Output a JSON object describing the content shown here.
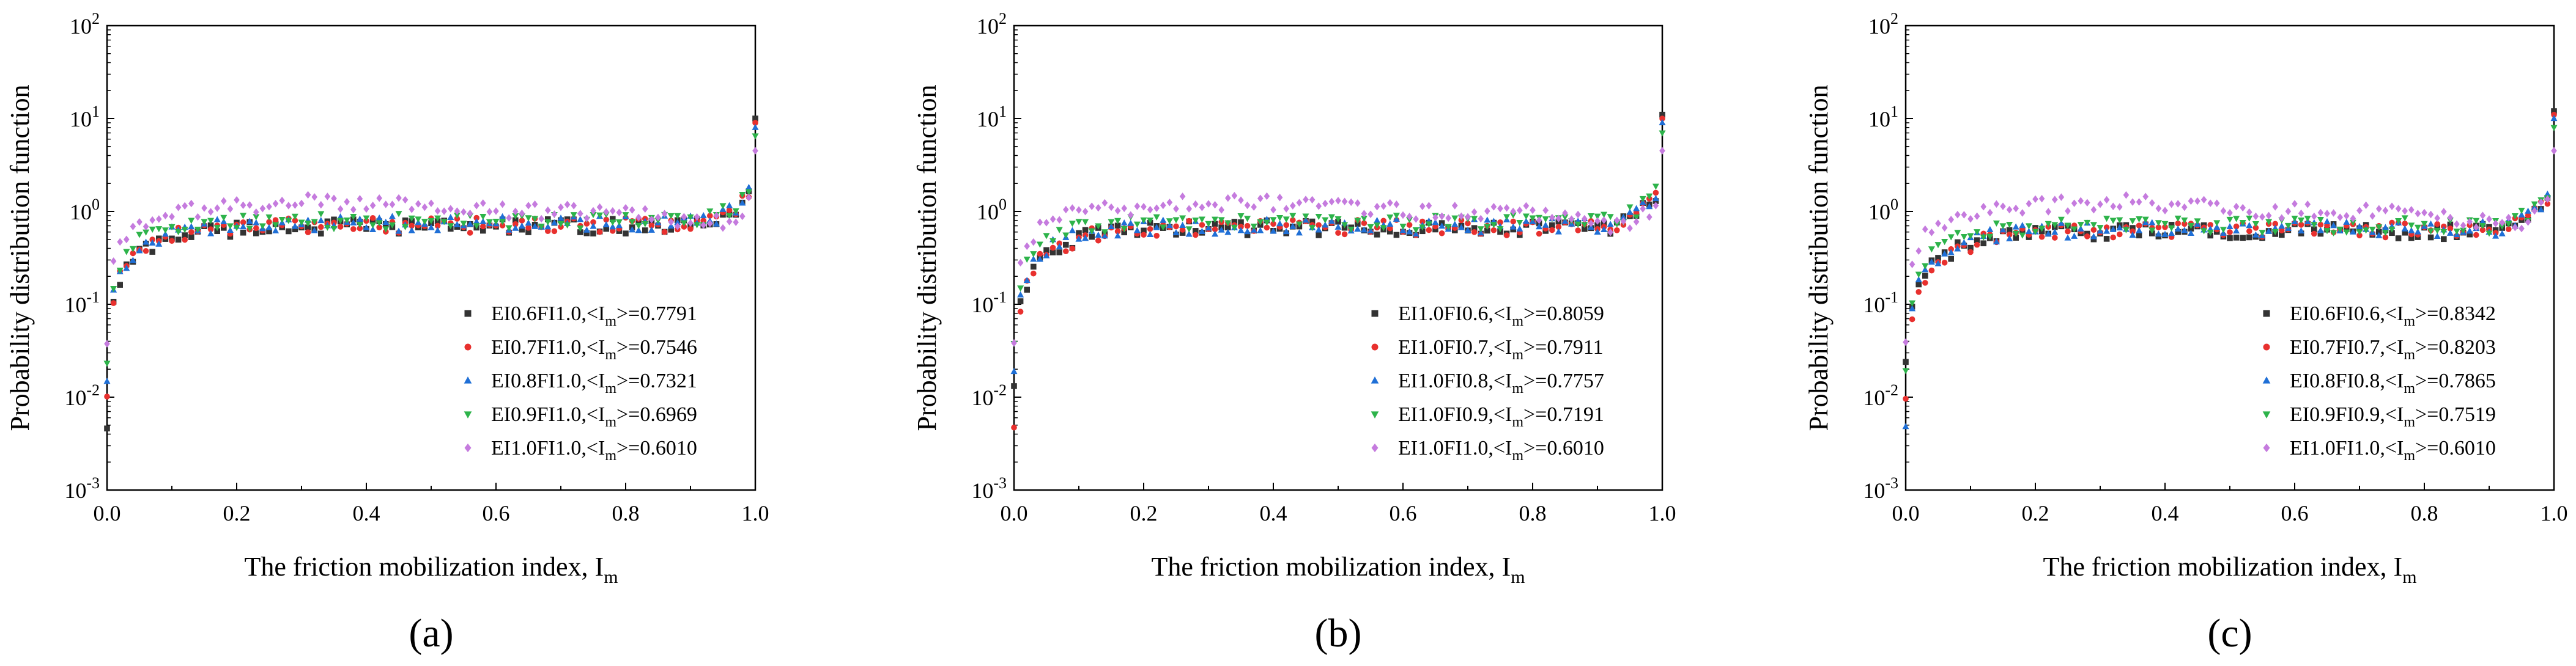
{
  "figure": {
    "panel_count": 3
  },
  "chart_data": [
    {
      "type": "scatter",
      "panel_label": "(a)",
      "xlabel": "The friction mobilization index, I",
      "xlabel_sub": "m",
      "ylabel": "Probability distribution function",
      "xlim": [
        0.0,
        1.0
      ],
      "ylim": [
        0.001,
        100
      ],
      "yscale": "log",
      "x_ticks": [
        "0.0",
        "0.2",
        "0.4",
        "0.6",
        "0.8",
        "1.0"
      ],
      "y_ticks": [
        {
          "base": "10",
          "exp": "-3"
        },
        {
          "base": "10",
          "exp": "-2"
        },
        {
          "base": "10",
          "exp": "-1"
        },
        {
          "base": "10",
          "exp": "0"
        },
        {
          "base": "10",
          "exp": "1"
        },
        {
          "base": "10",
          "exp": "2"
        }
      ],
      "legend_position": "bottom-right",
      "series": [
        {
          "name": "EI0.6FI1.0",
          "mean": "0.7791",
          "color": "#333333",
          "marker": "square",
          "start": 0.005,
          "plateau": 0.7,
          "rise_rate": 14,
          "dip": 0.0,
          "end_value": 10.0
        },
        {
          "name": "EI0.7FI1.0",
          "mean": "0.7546",
          "color": "#e8302e",
          "marker": "circle",
          "start": 0.011,
          "plateau": 0.72,
          "rise_rate": 15,
          "dip": 0.0,
          "end_value": 9.0
        },
        {
          "name": "EI0.8FI1.0",
          "mean": "0.7321",
          "color": "#1f6fd6",
          "marker": "triangle-up",
          "start": 0.016,
          "plateau": 0.75,
          "rise_rate": 16,
          "dip": 0.0,
          "end_value": 8.0
        },
        {
          "name": "EI0.9FI1.0",
          "mean": "0.6969",
          "color": "#2db34a",
          "marker": "triangle-down",
          "start": 0.025,
          "plateau": 0.8,
          "rise_rate": 18,
          "dip": 0.0,
          "end_value": 6.5
        },
        {
          "name": "EI1.0FI1.0",
          "mean": "0.6010",
          "color": "#c57bde",
          "marker": "diamond",
          "start": 0.04,
          "plateau": 1.0,
          "rise_rate": 24,
          "dip": 1.0,
          "end_value": 4.5
        }
      ]
    },
    {
      "type": "scatter",
      "panel_label": "(b)",
      "xlabel": "The friction mobilization index, I",
      "xlabel_sub": "m",
      "ylabel": "Probability distribution function",
      "xlim": [
        0.0,
        1.0
      ],
      "ylim": [
        0.001,
        100
      ],
      "yscale": "log",
      "x_ticks": [
        "0.0",
        "0.2",
        "0.4",
        "0.6",
        "0.8",
        "1.0"
      ],
      "y_ticks": [
        {
          "base": "10",
          "exp": "-3"
        },
        {
          "base": "10",
          "exp": "-2"
        },
        {
          "base": "10",
          "exp": "-1"
        },
        {
          "base": "10",
          "exp": "0"
        },
        {
          "base": "10",
          "exp": "1"
        },
        {
          "base": "10",
          "exp": "2"
        }
      ],
      "legend_position": "bottom-right",
      "series": [
        {
          "name": "EI1.0FI0.6",
          "mean": "0.8059",
          "color": "#333333",
          "marker": "square",
          "start": 0.014,
          "plateau": 0.68,
          "rise_rate": 14,
          "dip": 0.0,
          "end_value": 11.0
        },
        {
          "name": "EI1.0FI0.7",
          "mean": "0.7911",
          "color": "#e8302e",
          "marker": "circle",
          "start": 0.005,
          "plateau": 0.68,
          "rise_rate": 14,
          "dip": 0.0,
          "end_value": 10.0
        },
        {
          "name": "EI1.0FI0.8",
          "mean": "0.7757",
          "color": "#1f6fd6",
          "marker": "triangle-up",
          "start": 0.02,
          "plateau": 0.7,
          "rise_rate": 15,
          "dip": 0.0,
          "end_value": 9.0
        },
        {
          "name": "EI1.0FI0.9",
          "mean": "0.7191",
          "color": "#2db34a",
          "marker": "triangle-down",
          "start": 0.04,
          "plateau": 0.78,
          "rise_rate": 18,
          "dip": 0.0,
          "end_value": 7.0
        },
        {
          "name": "EI1.0FI1.0",
          "mean": "0.6010",
          "color": "#c57bde",
          "marker": "diamond",
          "start": 0.04,
          "plateau": 1.0,
          "rise_rate": 24,
          "dip": 1.0,
          "end_value": 4.5
        }
      ]
    },
    {
      "type": "scatter",
      "panel_label": "(c)",
      "xlabel": "The friction mobilization index, I",
      "xlabel_sub": "m",
      "ylabel": "Probability distribution function",
      "xlim": [
        0.0,
        1.0
      ],
      "ylim": [
        0.001,
        100
      ],
      "yscale": "log",
      "x_ticks": [
        "0.0",
        "0.2",
        "0.4",
        "0.6",
        "0.8",
        "1.0"
      ],
      "y_ticks": [
        {
          "base": "10",
          "exp": "-3"
        },
        {
          "base": "10",
          "exp": "-2"
        },
        {
          "base": "10",
          "exp": "-1"
        },
        {
          "base": "10",
          "exp": "0"
        },
        {
          "base": "10",
          "exp": "1"
        },
        {
          "base": "10",
          "exp": "2"
        }
      ],
      "legend_position": "bottom-right",
      "series": [
        {
          "name": "EI0.6FI0.6",
          "mean": "0.8342",
          "color": "#333333",
          "marker": "square",
          "start": 0.025,
          "plateau": 0.62,
          "rise_rate": 12,
          "dip": 0.0,
          "end_value": 12.0
        },
        {
          "name": "EI0.7FI0.7",
          "mean": "0.8203",
          "color": "#e8302e",
          "marker": "circle",
          "start": 0.01,
          "plateau": 0.64,
          "rise_rate": 12,
          "dip": 0.0,
          "end_value": 11.0
        },
        {
          "name": "EI0.8FI0.8",
          "mean": "0.7865",
          "color": "#1f6fd6",
          "marker": "triangle-up",
          "start": 0.005,
          "plateau": 0.66,
          "rise_rate": 13,
          "dip": 0.0,
          "end_value": 10.0
        },
        {
          "name": "EI0.9FI0.9",
          "mean": "0.7519",
          "color": "#2db34a",
          "marker": "triangle-down",
          "start": 0.02,
          "plateau": 0.72,
          "rise_rate": 15,
          "dip": 0.0,
          "end_value": 8.0
        },
        {
          "name": "EI1.0FI1.0",
          "mean": "0.6010",
          "color": "#c57bde",
          "marker": "diamond",
          "start": 0.04,
          "plateau": 1.0,
          "rise_rate": 24,
          "dip": 1.0,
          "end_value": 4.5
        }
      ]
    }
  ]
}
